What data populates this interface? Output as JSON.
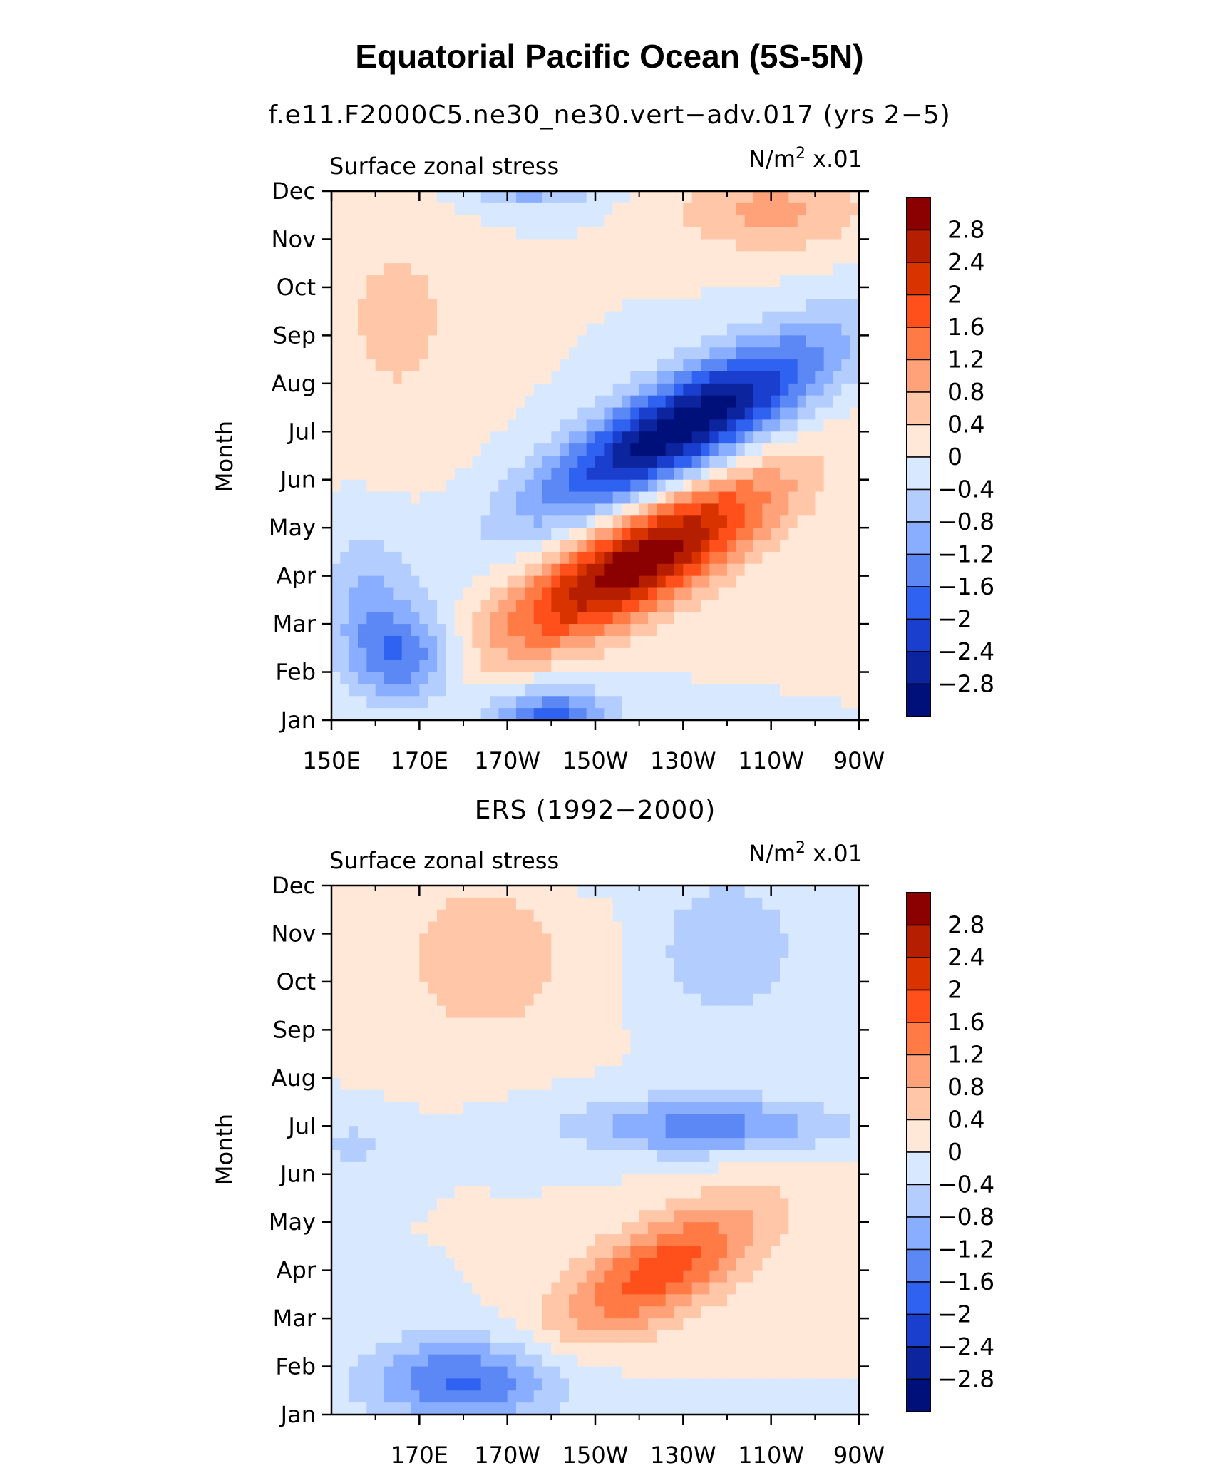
{
  "figure": {
    "title": "Equatorial Pacific Ocean (5S-5N)"
  },
  "colorbar": {
    "labels": [
      "2.8",
      "2.4",
      "2",
      "1.6",
      "1.2",
      "0.8",
      "0.4",
      "0",
      "−0.4",
      "−0.8",
      "−1.2",
      "−1.6",
      "−2",
      "−2.4",
      "−2.8"
    ],
    "colors": [
      "#8b0000",
      "#b51f00",
      "#d93400",
      "#ff4f1a",
      "#ff7a45",
      "#ffa27a",
      "#ffc6a8",
      "#ffe8d8",
      "#d8e9ff",
      "#b4cdff",
      "#8aaeff",
      "#5c88f5",
      "#2f62f0",
      "#1a3fcf",
      "#0c259e",
      "#00107a"
    ]
  },
  "chart_data": [
    {
      "type": "heatmap",
      "subtitle": "f.e11.F2000C5.ne30_ne30.vert−adv.017 (yrs 2−5)",
      "left_label": "Surface zonal stress",
      "units_text": "N/m",
      "units_sup": "2",
      "units_scale": " x.01",
      "ylabel": "Month",
      "xlabel": "",
      "x_ticklabels": [
        "150E",
        "170E",
        "170W",
        "150W",
        "130W",
        "110W",
        "90W"
      ],
      "x_tick_values": [
        150,
        170,
        190,
        210,
        230,
        250,
        270
      ],
      "y_ticklabels": [
        "Jan",
        "Feb",
        "Mar",
        "Apr",
        "May",
        "Jun",
        "Jul",
        "Aug",
        "Sep",
        "Oct",
        "Nov",
        "Dec"
      ],
      "xlim": [
        150,
        270
      ],
      "ylim": [
        "Jan",
        "Dec"
      ],
      "z_levels": [
        -2.8,
        -2.4,
        -2,
        -1.6,
        -1.2,
        -0.8,
        -0.4,
        0,
        0.4,
        0.8,
        1.2,
        1.6,
        2,
        2.4,
        2.8
      ],
      "field": [
        {
          "x": 220,
          "y": 3.3,
          "amp": 3.2,
          "sx": 30,
          "sy": 1.1,
          "tilt": 0.045
        },
        {
          "x": 230,
          "y": 6.1,
          "amp": -3.2,
          "sx": 32,
          "sy": 1.1,
          "tilt": 0.045
        },
        {
          "x": 167,
          "y": 1.3,
          "amp": -1.5,
          "sx": 12,
          "sy": 1.0,
          "tilt": 0
        },
        {
          "x": 200,
          "y": 0.0,
          "amp": -1.8,
          "sx": 14,
          "sy": 0.7,
          "tilt": 0
        },
        {
          "x": 195,
          "y": 11.3,
          "amp": -1.4,
          "sx": 15,
          "sy": 0.6,
          "tilt": 0
        },
        {
          "x": 250,
          "y": 10.6,
          "amp": 0.9,
          "sx": 22,
          "sy": 0.9,
          "tilt": 0
        },
        {
          "x": 165,
          "y": 8.3,
          "amp": 0.5,
          "sx": 18,
          "sy": 2.5,
          "tilt": 0
        },
        {
          "x": 158,
          "y": 2.5,
          "amp": -0.8,
          "sx": 10,
          "sy": 1.5,
          "tilt": 0
        }
      ]
    },
    {
      "type": "heatmap",
      "subtitle": "ERS (1992−2000)",
      "left_label": "Surface zonal stress",
      "units_text": "N/m",
      "units_sup": "2",
      "units_scale": " x.01",
      "ylabel": "Month",
      "xlabel": "",
      "x_ticklabels": [
        "170E",
        "170W",
        "150W",
        "130W",
        "110W",
        "90W"
      ],
      "x_tick_values": [
        170,
        190,
        210,
        230,
        250,
        270
      ],
      "y_ticklabels": [
        "Jan",
        "Feb",
        "Mar",
        "Apr",
        "May",
        "Jun",
        "Jul",
        "Aug",
        "Sep",
        "Oct",
        "Nov",
        "Dec"
      ],
      "xlim": [
        150,
        270
      ],
      "ylim": [
        "Jan",
        "Dec"
      ],
      "z_levels": [
        -2.8,
        -2.4,
        -2,
        -1.6,
        -1.2,
        -0.8,
        -0.4,
        0,
        0.4,
        0.8,
        1.2,
        1.6,
        2,
        2.4,
        2.8
      ],
      "field": [
        {
          "x": 225,
          "y": 3.0,
          "amp": 1.8,
          "sx": 24,
          "sy": 1.1,
          "tilt": 0.04
        },
        {
          "x": 235,
          "y": 6.0,
          "amp": -1.4,
          "sx": 30,
          "sy": 0.6,
          "tilt": 0
        },
        {
          "x": 180,
          "y": 0.7,
          "amp": -1.7,
          "sx": 22,
          "sy": 0.9,
          "tilt": 0
        },
        {
          "x": 210,
          "y": 11.6,
          "amp": -1.3,
          "sx": 12,
          "sy": 0.5,
          "tilt": 0
        },
        {
          "x": 240,
          "y": 9.7,
          "amp": -0.8,
          "sx": 16,
          "sy": 1.5,
          "tilt": 0
        },
        {
          "x": 185,
          "y": 9.5,
          "amp": 0.7,
          "sx": 20,
          "sy": 1.8,
          "tilt": 0
        },
        {
          "x": 155,
          "y": 5.6,
          "amp": -0.5,
          "sx": 10,
          "sy": 0.6,
          "tilt": 0
        }
      ]
    }
  ]
}
